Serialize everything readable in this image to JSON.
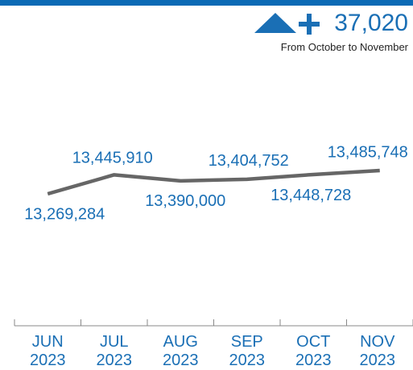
{
  "chart_data": {
    "type": "line",
    "change": 37020,
    "change_label": "37,020",
    "subtitle": "From October to November",
    "categories": [
      "JUN 2023",
      "JUL 2023",
      "AUG 2023",
      "SEP 2023",
      "OCT 2023",
      "NOV 2023"
    ],
    "values": [
      13269284,
      13445910,
      13390000,
      13404752,
      13448728,
      13485748
    ],
    "value_labels": [
      "13,269,284",
      "13,445,910",
      "13,390,000",
      "13,404,752",
      "13,448,728",
      "13,485,748"
    ],
    "color": "#666666",
    "label_color": "#1a6fb5"
  }
}
